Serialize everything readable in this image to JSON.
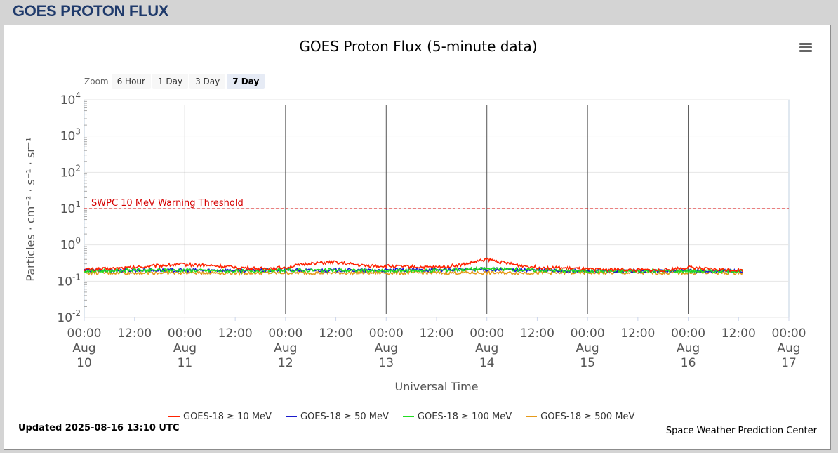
{
  "header": {
    "title": "GOES PROTON FLUX"
  },
  "zoom": {
    "label": "Zoom",
    "buttons": [
      "6 Hour",
      "1 Day",
      "3 Day",
      "7 Day"
    ],
    "active": "7 Day"
  },
  "footer": {
    "updated": "Updated 2025-08-16 13:10 UTC",
    "credit": "Space Weather Prediction Center"
  },
  "icons": {
    "menu": "hamburger-menu-icon"
  },
  "chart_data": {
    "type": "line",
    "title": "GOES Proton Flux (5-minute data)",
    "xlabel": "Universal Time",
    "ylabel": "Particles · cm⁻² · s⁻¹ · sr⁻¹",
    "y_scale": "log",
    "ylim": [
      0.01,
      10000
    ],
    "y_ticks": [
      {
        "value": 0.01,
        "label": "10",
        "exp": "-2"
      },
      {
        "value": 0.1,
        "label": "10",
        "exp": "-1"
      },
      {
        "value": 1,
        "label": "10",
        "exp": "0"
      },
      {
        "value": 10,
        "label": "10",
        "exp": "1"
      },
      {
        "value": 100,
        "label": "10",
        "exp": "2"
      },
      {
        "value": 1000,
        "label": "10",
        "exp": "3"
      },
      {
        "value": 10000,
        "label": "10",
        "exp": "4"
      }
    ],
    "xlim": [
      "2025-08-10 00:00",
      "2025-08-17 00:00"
    ],
    "x_ticks": [
      {
        "time": "2025-08-10 00:00",
        "lines": [
          "00:00",
          "Aug",
          "10"
        ]
      },
      {
        "time": "2025-08-10 12:00",
        "lines": [
          "12:00"
        ]
      },
      {
        "time": "2025-08-11 00:00",
        "lines": [
          "00:00",
          "Aug",
          "11"
        ]
      },
      {
        "time": "2025-08-11 12:00",
        "lines": [
          "12:00"
        ]
      },
      {
        "time": "2025-08-12 00:00",
        "lines": [
          "00:00",
          "Aug",
          "12"
        ]
      },
      {
        "time": "2025-08-12 12:00",
        "lines": [
          "12:00"
        ]
      },
      {
        "time": "2025-08-13 00:00",
        "lines": [
          "00:00",
          "Aug",
          "13"
        ]
      },
      {
        "time": "2025-08-13 12:00",
        "lines": [
          "12:00"
        ]
      },
      {
        "time": "2025-08-14 00:00",
        "lines": [
          "00:00",
          "Aug",
          "14"
        ]
      },
      {
        "time": "2025-08-14 12:00",
        "lines": [
          "12:00"
        ]
      },
      {
        "time": "2025-08-15 00:00",
        "lines": [
          "00:00",
          "Aug",
          "15"
        ]
      },
      {
        "time": "2025-08-15 12:00",
        "lines": [
          "12:00"
        ]
      },
      {
        "time": "2025-08-16 00:00",
        "lines": [
          "00:00",
          "Aug",
          "16"
        ]
      },
      {
        "time": "2025-08-16 12:00",
        "lines": [
          "12:00"
        ]
      },
      {
        "time": "2025-08-17 00:00",
        "lines": [
          "00:00",
          "Aug",
          "17"
        ]
      }
    ],
    "grid": true,
    "day_markers": [
      "2025-08-11 00:00",
      "2025-08-12 00:00",
      "2025-08-13 00:00",
      "2025-08-14 00:00",
      "2025-08-15 00:00",
      "2025-08-16 00:00"
    ],
    "threshold": {
      "label": "SWPC 10 MeV Warning Threshold",
      "value": 10,
      "color": "#d40000"
    },
    "legend_position": "bottom",
    "series": [
      {
        "name": "GOES-18 ≥ 10 MeV",
        "color": "#ff2200",
        "x": [
          "2025-08-10 00:00",
          "2025-08-10 06:00",
          "2025-08-10 12:00",
          "2025-08-10 18:00",
          "2025-08-11 00:00",
          "2025-08-11 06:00",
          "2025-08-11 12:00",
          "2025-08-11 18:00",
          "2025-08-12 00:00",
          "2025-08-12 06:00",
          "2025-08-12 12:00",
          "2025-08-12 18:00",
          "2025-08-13 00:00",
          "2025-08-13 06:00",
          "2025-08-13 12:00",
          "2025-08-13 18:00",
          "2025-08-14 00:00",
          "2025-08-14 06:00",
          "2025-08-14 12:00",
          "2025-08-14 18:00",
          "2025-08-15 00:00",
          "2025-08-15 06:00",
          "2025-08-15 12:00",
          "2025-08-15 18:00",
          "2025-08-16 00:00",
          "2025-08-16 06:00",
          "2025-08-16 13:10"
        ],
        "y": [
          0.21,
          0.22,
          0.24,
          0.27,
          0.29,
          0.27,
          0.24,
          0.22,
          0.24,
          0.31,
          0.33,
          0.27,
          0.26,
          0.25,
          0.24,
          0.28,
          0.4,
          0.29,
          0.24,
          0.23,
          0.21,
          0.21,
          0.2,
          0.2,
          0.24,
          0.21,
          0.2
        ]
      },
      {
        "name": "GOES-18 ≥ 50 MeV",
        "color": "#1a1acc",
        "x": [
          "2025-08-10 00:00",
          "2025-08-11 00:00",
          "2025-08-12 00:00",
          "2025-08-13 00:00",
          "2025-08-14 00:00",
          "2025-08-15 00:00",
          "2025-08-16 00:00",
          "2025-08-16 13:10"
        ],
        "y": [
          0.2,
          0.2,
          0.2,
          0.2,
          0.21,
          0.19,
          0.19,
          0.19
        ]
      },
      {
        "name": "GOES-18 ≥ 100 MeV",
        "color": "#22dd22",
        "x": [
          "2025-08-10 00:00",
          "2025-08-10 12:00",
          "2025-08-11 00:00",
          "2025-08-11 12:00",
          "2025-08-12 00:00",
          "2025-08-12 12:00",
          "2025-08-13 00:00",
          "2025-08-13 12:00",
          "2025-08-14 00:00",
          "2025-08-14 12:00",
          "2025-08-15 00:00",
          "2025-08-15 12:00",
          "2025-08-16 00:00",
          "2025-08-16 13:10"
        ],
        "y": [
          0.19,
          0.2,
          0.2,
          0.19,
          0.2,
          0.2,
          0.19,
          0.2,
          0.22,
          0.2,
          0.19,
          0.19,
          0.19,
          0.19
        ]
      },
      {
        "name": "GOES-18 ≥ 500 MeV",
        "color": "#e69a1a",
        "x": [
          "2025-08-10 00:00",
          "2025-08-11 00:00",
          "2025-08-12 00:00",
          "2025-08-13 00:00",
          "2025-08-14 00:00",
          "2025-08-15 00:00",
          "2025-08-16 00:00",
          "2025-08-16 13:10"
        ],
        "y": [
          0.17,
          0.17,
          0.17,
          0.17,
          0.17,
          0.17,
          0.17,
          0.17
        ]
      }
    ]
  }
}
